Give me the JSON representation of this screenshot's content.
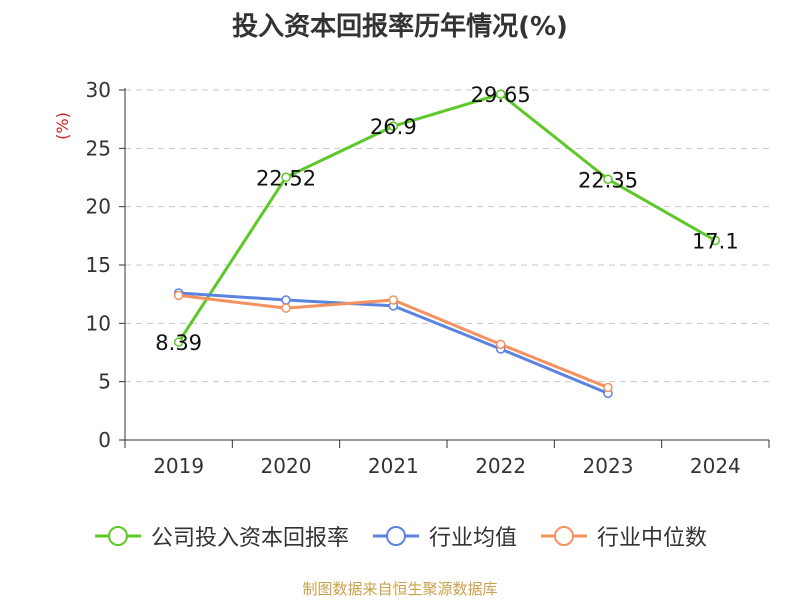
{
  "chart_data": {
    "type": "line",
    "title": "投入资本回报率历年情况(%)",
    "ylabel": "(%)",
    "xlabel": "",
    "categories": [
      "2019",
      "2020",
      "2021",
      "2022",
      "2023",
      "2024"
    ],
    "ylim": [
      0,
      30
    ],
    "yticks": [
      0,
      5,
      10,
      15,
      20,
      25,
      30
    ],
    "grid": true,
    "legend_position": "bottom",
    "series": [
      {
        "name": "公司投入资本回报率",
        "color": "#5cc928",
        "values": [
          8.39,
          22.52,
          26.9,
          29.65,
          22.35,
          17.1
        ],
        "labels": [
          "8.39",
          "22.52",
          "26.9",
          "29.65",
          "22.35",
          "17.1"
        ]
      },
      {
        "name": "行业均值",
        "color": "#5b84e0",
        "values": [
          12.6,
          12.0,
          11.5,
          7.8,
          4.0,
          null
        ],
        "labels": null
      },
      {
        "name": "行业中位数",
        "color": "#f5915f",
        "values": [
          12.4,
          11.3,
          12.0,
          8.2,
          4.5,
          null
        ],
        "labels": null
      }
    ],
    "source": "制图数据来自恒生聚源数据库"
  }
}
